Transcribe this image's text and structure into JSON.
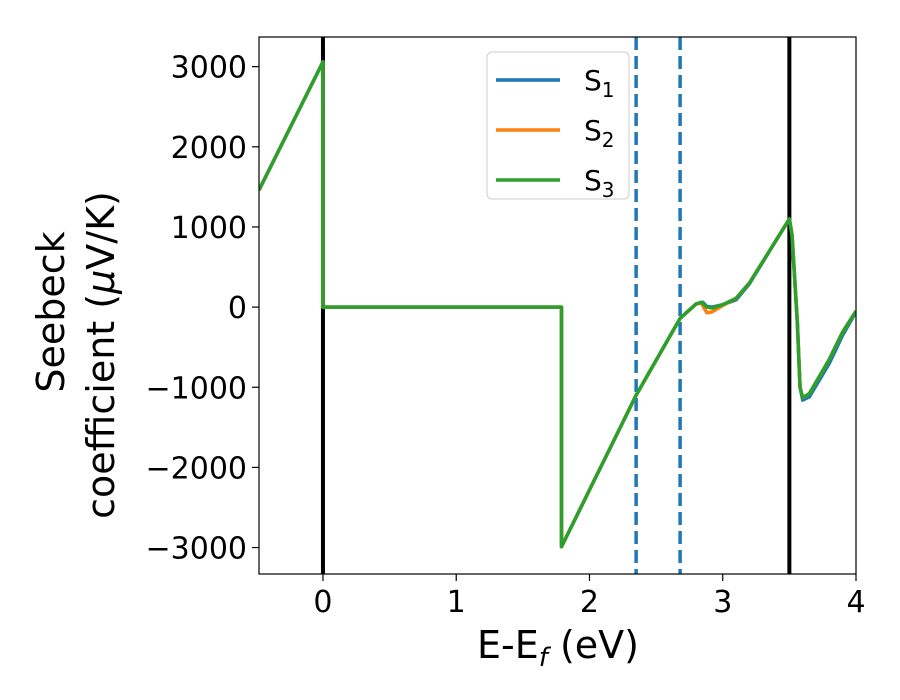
{
  "chart_data": {
    "type": "line",
    "title": "",
    "xlabel": "E-E",
    "xlabel_sub": "f",
    "xlabel_unit": " (eV)",
    "ylabel_line1": "Seebeck",
    "ylabel_line2": "coefficient  (",
    "ylabel_mu": "μ",
    "ylabel_unit": "V/K)",
    "xlim": [
      -0.48,
      4.0
    ],
    "ylim": [
      -3330,
      3370
    ],
    "xticks": [
      0,
      1,
      2,
      3,
      4
    ],
    "xtick_labels": [
      "0",
      "1",
      "2",
      "3",
      "4"
    ],
    "yticks": [
      -3000,
      -2000,
      -1000,
      0,
      1000,
      2000,
      3000
    ],
    "ytick_labels": [
      "−3000",
      "−2000",
      "−1000",
      "0",
      "1000",
      "2000",
      "3000"
    ],
    "grid": false,
    "legend_position": "top-center",
    "vertical_lines": [
      {
        "x": 0.0,
        "color": "#000000",
        "style": "solid"
      },
      {
        "x": 3.5,
        "color": "#000000",
        "style": "solid"
      },
      {
        "x": 2.35,
        "color": "#1f77b4",
        "style": "dashed"
      },
      {
        "x": 2.68,
        "color": "#1f77b4",
        "style": "dashed"
      }
    ],
    "series": [
      {
        "name": "S",
        "sub": "1",
        "color": "#1f77b4",
        "points": [
          [
            -0.48,
            1460
          ],
          [
            0.0,
            3060
          ],
          [
            0.0,
            0
          ],
          [
            1.79,
            0
          ],
          [
            1.79,
            -2990
          ],
          [
            2.35,
            -1100
          ],
          [
            2.68,
            -140
          ],
          [
            2.8,
            40
          ],
          [
            2.85,
            60
          ],
          [
            2.88,
            10
          ],
          [
            2.92,
            0
          ],
          [
            3.0,
            30
          ],
          [
            3.1,
            90
          ],
          [
            3.2,
            290
          ],
          [
            3.5,
            1100
          ],
          [
            3.52,
            900
          ],
          [
            3.56,
            -200
          ],
          [
            3.58,
            -1000
          ],
          [
            3.6,
            -1160
          ],
          [
            3.65,
            -1120
          ],
          [
            3.8,
            -700
          ],
          [
            3.9,
            -350
          ],
          [
            4.0,
            -60
          ]
        ]
      },
      {
        "name": "S",
        "sub": "2",
        "color": "#ff7f0e",
        "points": [
          [
            -0.48,
            1460
          ],
          [
            0.0,
            3060
          ],
          [
            0.0,
            0
          ],
          [
            1.79,
            0
          ],
          [
            1.79,
            -2990
          ],
          [
            2.35,
            -1100
          ],
          [
            2.68,
            -140
          ],
          [
            2.8,
            40
          ],
          [
            2.84,
            50
          ],
          [
            2.88,
            -70
          ],
          [
            2.92,
            -60
          ],
          [
            3.0,
            20
          ],
          [
            3.1,
            110
          ],
          [
            3.2,
            300
          ],
          [
            3.5,
            1100
          ],
          [
            3.52,
            900
          ],
          [
            3.56,
            -200
          ],
          [
            3.58,
            -1000
          ],
          [
            3.6,
            -1130
          ],
          [
            3.65,
            -1080
          ],
          [
            3.8,
            -650
          ],
          [
            3.9,
            -310
          ],
          [
            4.0,
            -50
          ]
        ]
      },
      {
        "name": "S",
        "sub": "3",
        "color": "#2ca02c",
        "points": [
          [
            -0.48,
            1460
          ],
          [
            0.0,
            3060
          ],
          [
            0.0,
            0
          ],
          [
            1.79,
            0
          ],
          [
            1.79,
            -2990
          ],
          [
            2.35,
            -1100
          ],
          [
            2.68,
            -140
          ],
          [
            2.8,
            40
          ],
          [
            2.84,
            60
          ],
          [
            2.88,
            0
          ],
          [
            2.92,
            -10
          ],
          [
            3.0,
            30
          ],
          [
            3.1,
            110
          ],
          [
            3.2,
            300
          ],
          [
            3.5,
            1100
          ],
          [
            3.52,
            900
          ],
          [
            3.56,
            -200
          ],
          [
            3.58,
            -1000
          ],
          [
            3.6,
            -1130
          ],
          [
            3.65,
            -1080
          ],
          [
            3.8,
            -650
          ],
          [
            3.9,
            -310
          ],
          [
            4.0,
            -50
          ]
        ]
      }
    ]
  }
}
